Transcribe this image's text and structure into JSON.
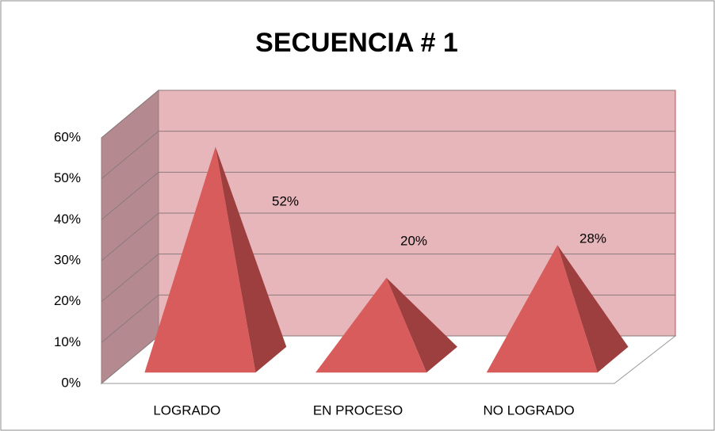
{
  "chart_data": {
    "type": "pyramid3d",
    "title": "SECUENCIA # 1",
    "categories": [
      "LOGRADO",
      "EN PROCESO",
      "NO LOGRADO"
    ],
    "values": [
      52,
      20,
      28
    ],
    "value_labels": [
      "52%",
      "20%",
      "28%"
    ],
    "color": "#d95c5c",
    "ylim": [
      0,
      60
    ],
    "yticks": [
      {
        "value": 0,
        "label": "0%"
      },
      {
        "value": 10,
        "label": "10%"
      },
      {
        "value": 20,
        "label": "20%"
      },
      {
        "value": 30,
        "label": "30%"
      },
      {
        "value": 40,
        "label": "40%"
      },
      {
        "value": 50,
        "label": "50%"
      },
      {
        "value": 60,
        "label": "60%"
      }
    ],
    "grid": true
  }
}
